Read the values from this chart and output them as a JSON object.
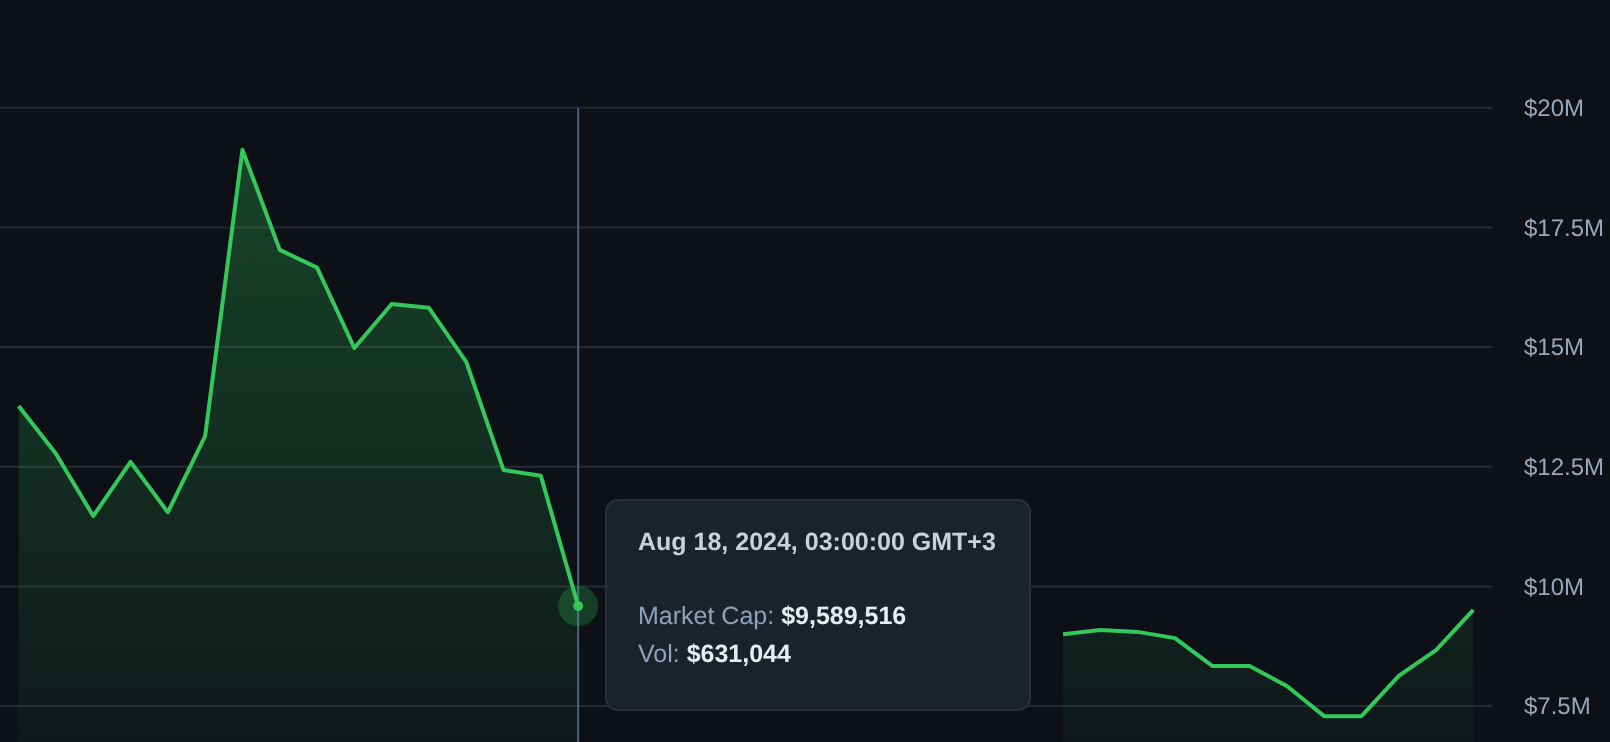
{
  "chart_data": {
    "type": "area",
    "categories": [
      null,
      null,
      null,
      null,
      null,
      null,
      null,
      null,
      null,
      null,
      null,
      null,
      null,
      null,
      null,
      null,
      null,
      null,
      null,
      null,
      null,
      null,
      null,
      null,
      null,
      null,
      null,
      null,
      null,
      null,
      null,
      null,
      null,
      null,
      null,
      null,
      null,
      null,
      null,
      null
    ],
    "series": [
      {
        "color": "#34c759",
        "values": [
          13.77,
          12.77,
          11.47,
          12.6,
          11.55,
          13.14,
          19.12,
          17.03,
          16.66,
          14.98,
          15.9,
          15.82,
          14.69,
          12.43,
          12.31,
          9.59,
          null,
          null,
          null,
          null,
          null,
          null,
          null,
          null,
          null,
          null,
          null,
          null,
          9.0,
          9.09,
          9.05,
          8.92,
          8.34,
          8.34,
          7.92,
          7.29,
          7.29,
          8.13,
          8.67,
          9.51
        ]
      }
    ],
    "ylim": [
      6.75,
      22.25
    ],
    "yticks": [
      {
        "value": 7.5,
        "label": "$7.5M"
      },
      {
        "value": 10,
        "label": "$10M"
      },
      {
        "value": 12.5,
        "label": "$12.5M"
      },
      {
        "value": 15,
        "label": "$15M"
      },
      {
        "value": 17.5,
        "label": "$17.5M"
      },
      {
        "value": 20,
        "label": "$20M"
      }
    ],
    "grid": "y",
    "tick_labels": "y",
    "annotations": [
      "Aug 18, 2024, 03:00:00 GMT+3",
      "Market Cap: $9,589,516",
      "Vol: $631,044"
    ]
  }
}
